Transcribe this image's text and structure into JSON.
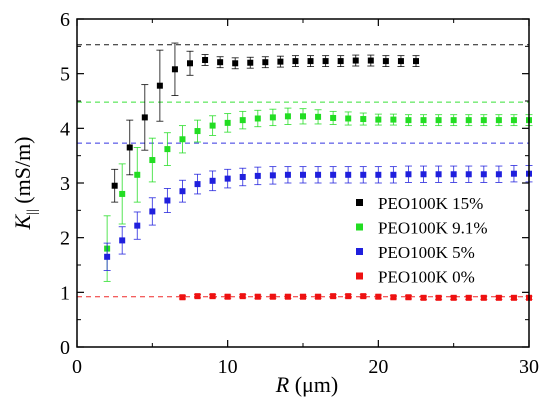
{
  "chart_data": {
    "type": "scatter",
    "xlabel": {
      "symbol": "R",
      "unit": " (μm)"
    },
    "ylabel": {
      "symbol": "K",
      "subscript": "||",
      "unit": " (mS/m)"
    },
    "xlim": [
      0,
      30
    ],
    "ylim": [
      0,
      6
    ],
    "x_ticks": [
      0,
      10,
      20,
      30
    ],
    "y_ticks": [
      0,
      1,
      2,
      3,
      4,
      5,
      6
    ],
    "x_tick_labels": [
      "0",
      "10",
      "20",
      "30"
    ],
    "y_tick_labels": [
      "0",
      "1",
      "2",
      "3",
      "4",
      "5",
      "6"
    ],
    "legend_position": "right",
    "series": [
      {
        "name": "PEO100K 15%",
        "color": "#000000",
        "reference_line": 5.53,
        "points": [
          [
            2.5,
            2.95,
            0.3
          ],
          [
            3.5,
            3.65,
            0.5
          ],
          [
            4.5,
            4.2,
            0.6
          ],
          [
            5.5,
            4.78,
            0.65
          ],
          [
            6.5,
            5.08,
            0.48
          ],
          [
            7.5,
            5.19,
            0.22
          ],
          [
            8.5,
            5.25,
            0.1
          ],
          [
            9.5,
            5.21,
            0.1
          ],
          [
            10.5,
            5.19,
            0.1
          ],
          [
            11.5,
            5.2,
            0.1
          ],
          [
            12.5,
            5.21,
            0.1
          ],
          [
            13.5,
            5.22,
            0.1
          ],
          [
            14.5,
            5.23,
            0.1
          ],
          [
            15.5,
            5.23,
            0.1
          ],
          [
            16.5,
            5.23,
            0.1
          ],
          [
            17.5,
            5.23,
            0.1
          ],
          [
            18.5,
            5.24,
            0.1
          ],
          [
            19.5,
            5.24,
            0.1
          ],
          [
            20.5,
            5.23,
            0.1
          ],
          [
            21.5,
            5.23,
            0.1
          ],
          [
            22.5,
            5.23,
            0.1
          ]
        ]
      },
      {
        "name": "PEO100K 9.1%",
        "color": "#22dd22",
        "reference_line": 4.48,
        "points": [
          [
            2.0,
            1.8,
            0.6
          ],
          [
            3.0,
            2.8,
            0.55
          ],
          [
            4.0,
            3.15,
            0.5
          ],
          [
            5.0,
            3.42,
            0.4
          ],
          [
            6.0,
            3.62,
            0.3
          ],
          [
            7.0,
            3.8,
            0.25
          ],
          [
            8.0,
            3.95,
            0.2
          ],
          [
            9.0,
            4.05,
            0.18
          ],
          [
            10.0,
            4.1,
            0.17
          ],
          [
            11.0,
            4.15,
            0.16
          ],
          [
            12.0,
            4.18,
            0.15
          ],
          [
            13.0,
            4.2,
            0.15
          ],
          [
            14.0,
            4.22,
            0.15
          ],
          [
            15.0,
            4.22,
            0.14
          ],
          [
            16.0,
            4.21,
            0.13
          ],
          [
            17.0,
            4.19,
            0.12
          ],
          [
            18.0,
            4.18,
            0.12
          ],
          [
            19.0,
            4.17,
            0.11
          ],
          [
            20.0,
            4.16,
            0.1
          ],
          [
            21.0,
            4.16,
            0.1
          ],
          [
            22.0,
            4.15,
            0.1
          ],
          [
            23.0,
            4.15,
            0.1
          ],
          [
            24.0,
            4.15,
            0.1
          ],
          [
            25.0,
            4.15,
            0.1
          ],
          [
            26.0,
            4.15,
            0.1
          ],
          [
            27.0,
            4.15,
            0.1
          ],
          [
            28.0,
            4.15,
            0.1
          ],
          [
            29.0,
            4.15,
            0.1
          ],
          [
            30.0,
            4.15,
            0.1
          ]
        ]
      },
      {
        "name": "PEO100K 5%",
        "color": "#1f1fdd",
        "reference_line": 3.73,
        "points": [
          [
            2.0,
            1.65,
            0.25
          ],
          [
            3.0,
            1.95,
            0.25
          ],
          [
            4.0,
            2.22,
            0.25
          ],
          [
            5.0,
            2.48,
            0.25
          ],
          [
            6.0,
            2.68,
            0.22
          ],
          [
            7.0,
            2.85,
            0.2
          ],
          [
            8.0,
            2.98,
            0.18
          ],
          [
            9.0,
            3.04,
            0.18
          ],
          [
            10.0,
            3.08,
            0.17
          ],
          [
            11.0,
            3.11,
            0.16
          ],
          [
            12.0,
            3.13,
            0.16
          ],
          [
            13.0,
            3.14,
            0.16
          ],
          [
            14.0,
            3.15,
            0.15
          ],
          [
            15.0,
            3.15,
            0.15
          ],
          [
            16.0,
            3.15,
            0.15
          ],
          [
            17.0,
            3.15,
            0.15
          ],
          [
            18.0,
            3.15,
            0.15
          ],
          [
            19.0,
            3.15,
            0.15
          ],
          [
            20.0,
            3.15,
            0.15
          ],
          [
            21.0,
            3.15,
            0.15
          ],
          [
            22.0,
            3.16,
            0.15
          ],
          [
            23.0,
            3.16,
            0.15
          ],
          [
            24.0,
            3.16,
            0.15
          ],
          [
            25.0,
            3.16,
            0.15
          ],
          [
            26.0,
            3.16,
            0.15
          ],
          [
            27.0,
            3.16,
            0.15
          ],
          [
            28.0,
            3.16,
            0.15
          ],
          [
            29.0,
            3.17,
            0.15
          ],
          [
            30.0,
            3.17,
            0.15
          ]
        ]
      },
      {
        "name": "PEO100K 0%",
        "color": "#ee1111",
        "reference_line": 0.92,
        "points": [
          [
            7.0,
            0.91,
            0.03
          ],
          [
            8.0,
            0.93,
            0.03
          ],
          [
            9.0,
            0.93,
            0.03
          ],
          [
            10.0,
            0.92,
            0.03
          ],
          [
            11.0,
            0.93,
            0.03
          ],
          [
            12.0,
            0.92,
            0.03
          ],
          [
            13.0,
            0.92,
            0.03
          ],
          [
            14.0,
            0.92,
            0.03
          ],
          [
            15.0,
            0.92,
            0.03
          ],
          [
            16.0,
            0.92,
            0.03
          ],
          [
            17.0,
            0.93,
            0.03
          ],
          [
            18.0,
            0.93,
            0.03
          ],
          [
            19.0,
            0.93,
            0.03
          ],
          [
            20.0,
            0.92,
            0.03
          ],
          [
            21.0,
            0.91,
            0.03
          ],
          [
            22.0,
            0.91,
            0.03
          ],
          [
            23.0,
            0.9,
            0.03
          ],
          [
            24.0,
            0.9,
            0.03
          ],
          [
            25.0,
            0.9,
            0.03
          ],
          [
            26.0,
            0.9,
            0.03
          ],
          [
            27.0,
            0.9,
            0.03
          ],
          [
            28.0,
            0.9,
            0.03
          ],
          [
            29.0,
            0.9,
            0.03
          ],
          [
            30.0,
            0.9,
            0.03
          ]
        ]
      }
    ]
  }
}
